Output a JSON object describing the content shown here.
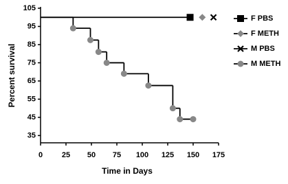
{
  "chart_data": {
    "type": "step",
    "x_label": "Time in Days",
    "y_label": "Percent survival",
    "xlim": [
      0,
      175
    ],
    "xticks": [
      0,
      25,
      50,
      75,
      100,
      125,
      150,
      175
    ],
    "ylim": [
      31,
      105
    ],
    "yticks": [
      35,
      45,
      55,
      65,
      75,
      85,
      95,
      105
    ],
    "series": [
      {
        "name": "F PBS",
        "color": "#000000",
        "marker": "square",
        "x": [
          0,
          147
        ],
        "values": [
          100,
          100
        ]
      },
      {
        "name": "F METH",
        "color": "#888888",
        "marker": "diamond",
        "x": [
          159
        ],
        "values": [
          100
        ]
      },
      {
        "name": "M PBS",
        "color": "#000000",
        "marker": "x",
        "x": [
          170
        ],
        "values": [
          100
        ]
      },
      {
        "name": "M METH",
        "color": "#888888",
        "marker": "circle",
        "x": [
          0,
          32,
          49,
          57,
          65,
          82,
          106,
          130,
          137,
          150
        ],
        "values": [
          100,
          94,
          87.5,
          81,
          75,
          69,
          62.5,
          50,
          44,
          44
        ]
      }
    ]
  }
}
